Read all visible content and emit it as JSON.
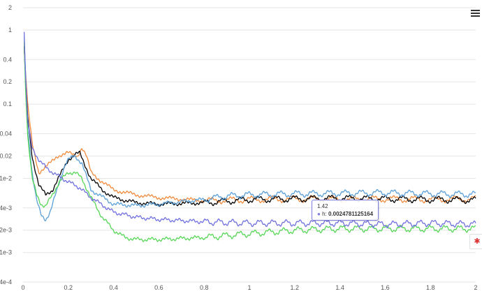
{
  "chart_data": {
    "type": "line",
    "title": "",
    "xlabel": "",
    "ylabel": "",
    "y_scale": "log",
    "xlim": [
      0,
      2
    ],
    "ylim": [
      0.0004,
      2
    ],
    "x_ticks": [
      "0",
      "0.2",
      "0.4",
      "0.6",
      "0.8",
      "1",
      "1.2",
      "1.4",
      "1.6",
      "1.8",
      "2"
    ],
    "y_ticks": [
      {
        "value": 2,
        "label": "2"
      },
      {
        "value": 1,
        "label": "1"
      },
      {
        "value": 0.4,
        "label": "0.4"
      },
      {
        "value": 0.2,
        "label": "0.2"
      },
      {
        "value": 0.1,
        "label": "0.1"
      },
      {
        "value": 0.04,
        "label": "0.04"
      },
      {
        "value": 0.02,
        "label": "0.02"
      },
      {
        "value": 0.01,
        "label": "1e-2"
      },
      {
        "value": 0.004,
        "label": "4e-3"
      },
      {
        "value": 0.002,
        "label": "2e-3"
      },
      {
        "value": 0.001,
        "label": "1e-3"
      },
      {
        "value": 0.0004,
        "label": "4e-4"
      }
    ],
    "grid": true,
    "series": [
      {
        "color": "#f08a3c",
        "x": [
          0.005,
          0.01,
          0.02,
          0.04,
          0.07,
          0.1,
          0.15,
          0.2,
          0.24,
          0.26,
          0.28,
          0.3,
          0.35,
          0.4,
          0.5,
          0.6,
          0.8,
          1.0,
          1.2,
          1.4,
          1.6,
          1.8,
          2.0
        ],
        "y": [
          0.5,
          0.3,
          0.1,
          0.03,
          0.012,
          0.014,
          0.02,
          0.022,
          0.02,
          0.026,
          0.02,
          0.012,
          0.009,
          0.007,
          0.006,
          0.0055,
          0.005,
          0.0052,
          0.0053,
          0.0052,
          0.0053,
          0.0052,
          0.0053
        ]
      },
      {
        "color": "#000000",
        "x": [
          0.005,
          0.01,
          0.02,
          0.04,
          0.07,
          0.1,
          0.13,
          0.17,
          0.2,
          0.23,
          0.25,
          0.27,
          0.3,
          0.35,
          0.4,
          0.5,
          0.6,
          0.8,
          1.0,
          1.2,
          1.4,
          1.6,
          1.8,
          2.0
        ],
        "y": [
          0.6,
          0.25,
          0.07,
          0.02,
          0.008,
          0.006,
          0.007,
          0.012,
          0.018,
          0.021,
          0.022,
          0.016,
          0.01,
          0.007,
          0.0055,
          0.0047,
          0.0045,
          0.0047,
          0.0052,
          0.0053,
          0.0054,
          0.0053,
          0.0052,
          0.0051
        ]
      },
      {
        "color": "#5a9fd8",
        "x": [
          0.005,
          0.01,
          0.02,
          0.04,
          0.06,
          0.08,
          0.1,
          0.12,
          0.15,
          0.18,
          0.2,
          0.23,
          0.26,
          0.3,
          0.4,
          0.5,
          0.6,
          0.8,
          0.9,
          1.0,
          1.2,
          1.4,
          1.6,
          1.8,
          2.0
        ],
        "y": [
          0.8,
          0.3,
          0.05,
          0.012,
          0.005,
          0.0032,
          0.0028,
          0.0035,
          0.007,
          0.014,
          0.018,
          0.02,
          0.016,
          0.007,
          0.0045,
          0.0043,
          0.0045,
          0.0052,
          0.0058,
          0.006,
          0.0062,
          0.0063,
          0.0064,
          0.0062,
          0.0061
        ]
      },
      {
        "color": "#55d655",
        "x": [
          0.005,
          0.01,
          0.02,
          0.04,
          0.06,
          0.08,
          0.1,
          0.13,
          0.16,
          0.2,
          0.23,
          0.26,
          0.3,
          0.35,
          0.4,
          0.45,
          0.5,
          0.6,
          0.8,
          1.0,
          1.2,
          1.4,
          1.6,
          1.8,
          2.0
        ],
        "y": [
          0.7,
          0.2,
          0.04,
          0.01,
          0.006,
          0.0045,
          0.0042,
          0.006,
          0.009,
          0.012,
          0.012,
          0.01,
          0.0055,
          0.003,
          0.002,
          0.0016,
          0.0015,
          0.0015,
          0.0016,
          0.0018,
          0.002,
          0.0021,
          0.0021,
          0.0021,
          0.0021
        ]
      },
      {
        "name": "h",
        "color": "#7070e0",
        "x": [
          0.005,
          0.01,
          0.02,
          0.04,
          0.07,
          0.1,
          0.15,
          0.2,
          0.25,
          0.3,
          0.4,
          0.5,
          0.6,
          0.7,
          0.8,
          1.0,
          1.2,
          1.4,
          1.6,
          1.8,
          2.0
        ],
        "y": [
          1.0,
          0.3,
          0.06,
          0.025,
          0.018,
          0.014,
          0.011,
          0.009,
          0.0075,
          0.0055,
          0.0035,
          0.003,
          0.0028,
          0.0027,
          0.0026,
          0.0025,
          0.0025,
          0.0025,
          0.0024,
          0.0025,
          0.0024
        ]
      }
    ],
    "tooltip": {
      "x_label": "1.42",
      "series_name": "h",
      "value": "0.0024781125164"
    }
  }
}
